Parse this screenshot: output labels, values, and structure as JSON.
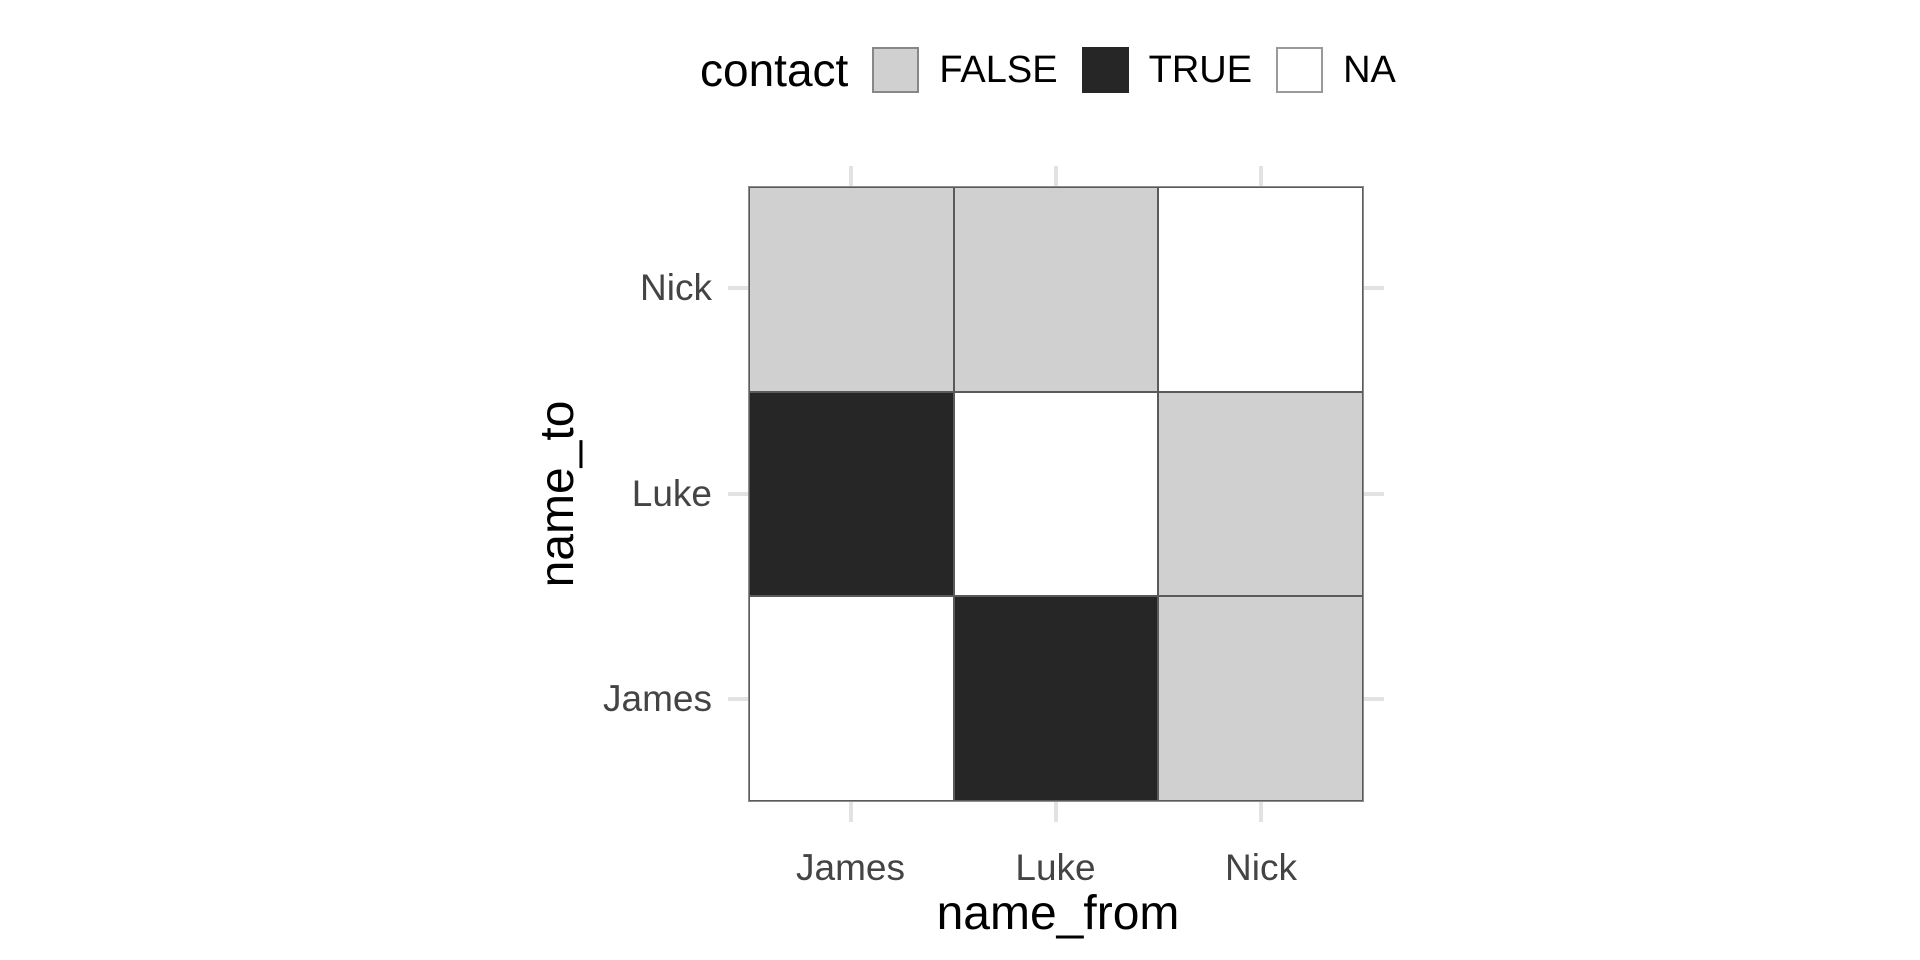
{
  "chart_data": {
    "type": "heatmap",
    "title": "",
    "legend_title": "contact",
    "xlabel": "name_from",
    "ylabel": "name_to",
    "x_categories": [
      "James",
      "Luke",
      "Nick"
    ],
    "y_categories_bottom_to_top": [
      "James",
      "Luke",
      "Nick"
    ],
    "levels": [
      "FALSE",
      "TRUE",
      "NA"
    ],
    "fill_colors": {
      "FALSE": "#D0D0D0",
      "TRUE": "#262626",
      "NA": "#FFFFFF"
    },
    "tile_border_color": "#5A5A5A",
    "panel_border_color": "#8E8E8E",
    "tick_color": "#E2E2E2",
    "axis_text_color": "#444444",
    "legend_items": [
      {
        "label": "FALSE",
        "fill": "#D0D0D0",
        "border": "#878787"
      },
      {
        "label": "TRUE",
        "fill": "#262626",
        "border": "#262626"
      },
      {
        "label": "NA",
        "fill": "#FFFFFF",
        "border": "#9A9A9A"
      }
    ],
    "cells": [
      {
        "from": "James",
        "to": "James",
        "contact": "NA"
      },
      {
        "from": "James",
        "to": "Luke",
        "contact": "TRUE"
      },
      {
        "from": "James",
        "to": "Nick",
        "contact": "FALSE"
      },
      {
        "from": "Luke",
        "to": "James",
        "contact": "TRUE"
      },
      {
        "from": "Luke",
        "to": "Luke",
        "contact": "NA"
      },
      {
        "from": "Luke",
        "to": "Nick",
        "contact": "FALSE"
      },
      {
        "from": "Nick",
        "to": "James",
        "contact": "FALSE"
      },
      {
        "from": "Nick",
        "to": "Luke",
        "contact": "FALSE"
      },
      {
        "from": "Nick",
        "to": "Nick",
        "contact": "NA"
      }
    ]
  }
}
